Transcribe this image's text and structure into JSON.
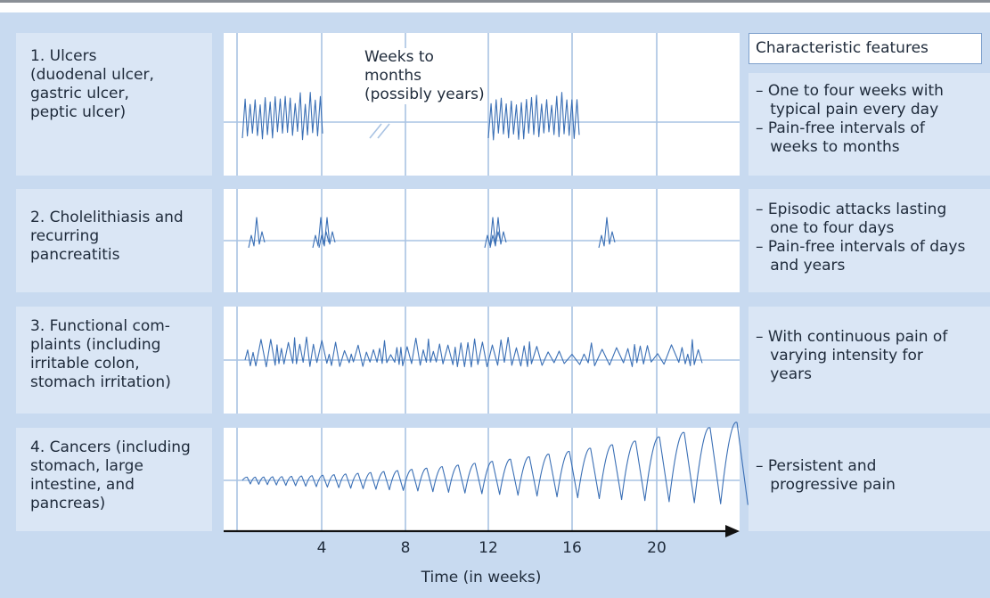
{
  "header": {
    "features_title": "Characteristic features",
    "gap_note": "Weeks to\nmonths\n(possibly years)"
  },
  "rows": [
    {
      "label": "1. Ulcers\n   (duodenal ulcer,\n   gastric ulcer,\n   peptic ulcer)",
      "features": [
        "– One to four weeks with",
        "   typical pain every day",
        "– Pain-free intervals of",
        "   weeks to months"
      ]
    },
    {
      "label": "2. Cholelithiasis and\n   recurring\n   pancreatitis",
      "features": [
        "– Episodic attacks lasting",
        "   one to four days",
        "– Pain-free intervals of days",
        "   and years"
      ]
    },
    {
      "label": "3. Functional com-\n   plaints (including\n   irritable colon,\n   stomach irritation)",
      "features": [
        "– With continuous pain of",
        "   varying intensity for",
        "   years"
      ]
    },
    {
      "label": "4. Cancers (including\n   stomach, large\n   intestine, and\n   pancreas)",
      "features": [
        "– Persistent and",
        "   progressive pain"
      ]
    }
  ],
  "axis": {
    "title": "Time (in weeks)",
    "ticks": [
      "4",
      "8",
      "12",
      "16",
      "20"
    ]
  },
  "colors": {
    "panel": "#c8daf0",
    "cell": "#dae6f5",
    "line": "#3a6fb5",
    "grid": "#a9c3e3",
    "axis": "#111111"
  }
}
